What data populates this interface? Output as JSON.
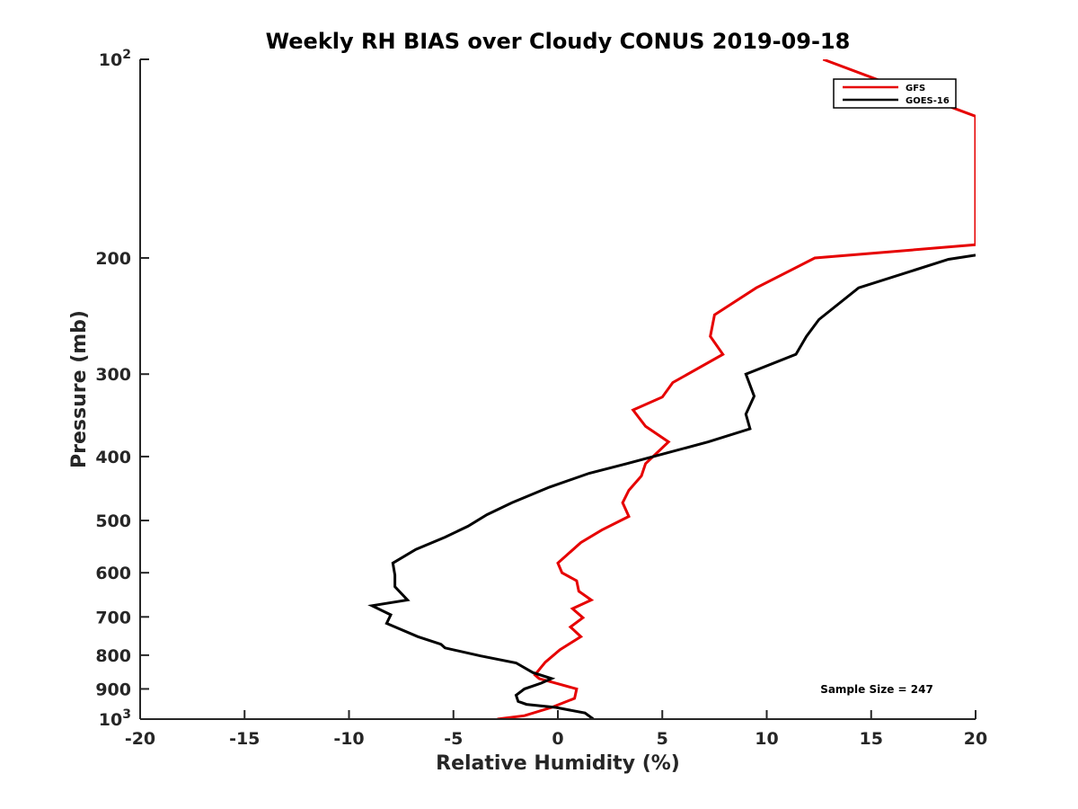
{
  "chart_data": {
    "type": "line",
    "title": "Weekly RH BIAS over Cloudy CONUS 2019-09-18",
    "xlabel": "Relative Humidity (%)",
    "ylabel": "Pressure (mb)",
    "xlim": [
      -20,
      20
    ],
    "ylim": [
      100,
      1000
    ],
    "yscale": "log",
    "y_reversed": true,
    "grid": false,
    "legend_position": "top-right",
    "x_ticks": [
      -20,
      -15,
      -10,
      -5,
      0,
      5,
      10,
      15,
      20
    ],
    "x_tick_labels": [
      "-20",
      "-15",
      "-10",
      "-5",
      "0",
      "5",
      "10",
      "15",
      "20"
    ],
    "y_ticks": [
      {
        "value": 100,
        "label": "10",
        "sup": "2"
      },
      {
        "value": 200,
        "label": "200",
        "sup": ""
      },
      {
        "value": 300,
        "label": "300",
        "sup": ""
      },
      {
        "value": 400,
        "label": "400",
        "sup": ""
      },
      {
        "value": 500,
        "label": "500",
        "sup": ""
      },
      {
        "value": 600,
        "label": "600",
        "sup": ""
      },
      {
        "value": 700,
        "label": "700",
        "sup": ""
      },
      {
        "value": 800,
        "label": "800",
        "sup": ""
      },
      {
        "value": 900,
        "label": "900",
        "sup": ""
      },
      {
        "value": 1000,
        "label": "10",
        "sup": "3"
      }
    ],
    "series": [
      {
        "name": "GFS",
        "color": "#e60000",
        "points": [
          [
            12.7,
            100
          ],
          [
            20.0,
            122
          ],
          [
            20.0,
            191
          ],
          [
            12.3,
            200
          ],
          [
            9.5,
            222
          ],
          [
            7.5,
            244
          ],
          [
            7.3,
            263
          ],
          [
            7.9,
            280
          ],
          [
            5.5,
            309
          ],
          [
            5.0,
            325
          ],
          [
            3.6,
            340
          ],
          [
            4.2,
            360
          ],
          [
            5.3,
            380
          ],
          [
            4.2,
            410
          ],
          [
            4.0,
            428
          ],
          [
            3.4,
            450
          ],
          [
            3.1,
            470
          ],
          [
            3.4,
            493
          ],
          [
            2.1,
            517
          ],
          [
            1.1,
            540
          ],
          [
            0.0,
            580
          ],
          [
            0.2,
            600
          ],
          [
            0.9,
            617
          ],
          [
            1.0,
            640
          ],
          [
            1.6,
            660
          ],
          [
            0.7,
            680
          ],
          [
            1.2,
            702
          ],
          [
            0.6,
            725
          ],
          [
            1.1,
            750
          ],
          [
            0.1,
            785
          ],
          [
            -0.6,
            820
          ],
          [
            -1.1,
            857
          ],
          [
            -0.9,
            868
          ],
          [
            0.9,
            900
          ],
          [
            0.8,
            930
          ],
          [
            -0.3,
            960
          ],
          [
            -1.6,
            988
          ],
          [
            -2.9,
            1000
          ]
        ]
      },
      {
        "name": "GOES-16",
        "color": "#000000",
        "points": [
          [
            20.0,
            198
          ],
          [
            18.7,
            201
          ],
          [
            14.4,
            222
          ],
          [
            12.5,
            248
          ],
          [
            11.9,
            263
          ],
          [
            11.4,
            280
          ],
          [
            9.0,
            300
          ],
          [
            9.4,
            324
          ],
          [
            9.0,
            345
          ],
          [
            9.2,
            363
          ],
          [
            7.2,
            380
          ],
          [
            3.3,
            410
          ],
          [
            1.5,
            424
          ],
          [
            -0.4,
            445
          ],
          [
            -2.2,
            470
          ],
          [
            -3.4,
            490
          ],
          [
            -4.3,
            510
          ],
          [
            -5.4,
            530
          ],
          [
            -6.8,
            553
          ],
          [
            -7.9,
            580
          ],
          [
            -7.8,
            605
          ],
          [
            -7.8,
            630
          ],
          [
            -7.2,
            660
          ],
          [
            -8.9,
            673
          ],
          [
            -8.0,
            695
          ],
          [
            -8.2,
            716
          ],
          [
            -6.7,
            750
          ],
          [
            -5.6,
            770
          ],
          [
            -5.4,
            780
          ],
          [
            -3.7,
            802
          ],
          [
            -2.0,
            822
          ],
          [
            -1.2,
            850
          ],
          [
            -0.3,
            868
          ],
          [
            -0.8,
            882
          ],
          [
            -1.6,
            900
          ],
          [
            -2.0,
            920
          ],
          [
            -1.9,
            940
          ],
          [
            -1.5,
            950
          ],
          [
            -0.1,
            960
          ],
          [
            1.3,
            979
          ],
          [
            1.7,
            1000
          ]
        ]
      }
    ],
    "annotations": [
      "Sample Size = 247"
    ]
  }
}
